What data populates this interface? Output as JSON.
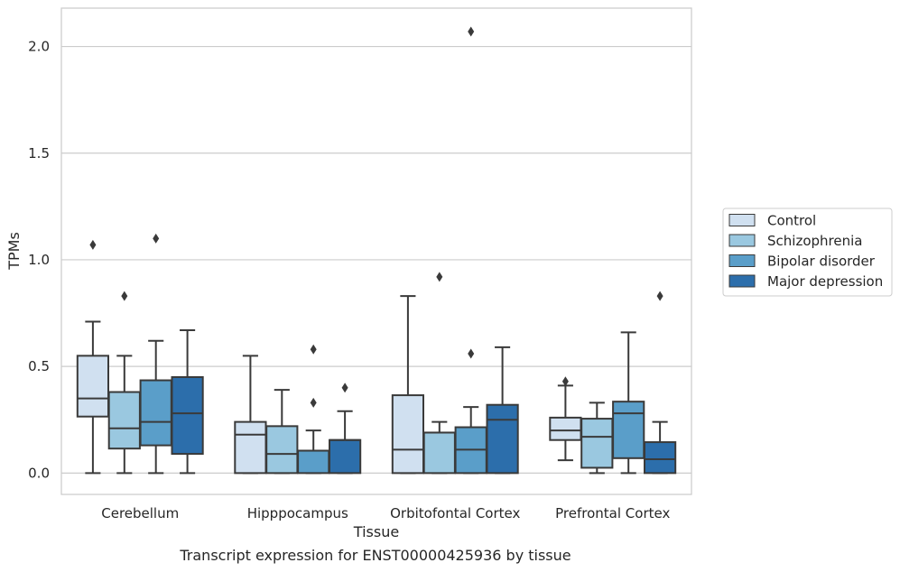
{
  "caption": "Transcript expression for ENST00000425936 by tissue",
  "chart_data": {
    "type": "box",
    "xlabel": "Tissue",
    "ylabel": "TPMs",
    "ylim": [
      -0.1,
      2.18
    ],
    "yticks": [
      0.0,
      0.5,
      1.0,
      1.5,
      2.0
    ],
    "ytick_labels": [
      "0.0",
      "0.5",
      "1.0",
      "1.5",
      "2.0"
    ],
    "grid": "horizontal",
    "legend_position": "right",
    "categories": [
      "Cerebellum",
      "Hipppocampus",
      "Orbitofontal Cortex",
      "Prefrontal Cortex"
    ],
    "series": [
      {
        "name": "Control",
        "color": "#d0e0f0",
        "boxes": [
          {
            "min": 0.0,
            "q1": 0.265,
            "median": 0.35,
            "q3": 0.55,
            "max": 0.71,
            "outliers": [
              1.07
            ]
          },
          {
            "min": 0.0,
            "q1": 0.0,
            "median": 0.18,
            "q3": 0.24,
            "max": 0.55,
            "outliers": []
          },
          {
            "min": 0.0,
            "q1": 0.0,
            "median": 0.11,
            "q3": 0.365,
            "max": 0.83,
            "outliers": []
          },
          {
            "min": 0.06,
            "q1": 0.155,
            "median": 0.2,
            "q3": 0.26,
            "max": 0.41,
            "outliers": [
              0.43
            ]
          }
        ]
      },
      {
        "name": "Schizophrenia",
        "color": "#9ac8e0",
        "boxes": [
          {
            "min": 0.0,
            "q1": 0.115,
            "median": 0.21,
            "q3": 0.38,
            "max": 0.55,
            "outliers": [
              0.83
            ]
          },
          {
            "min": 0.0,
            "q1": 0.0,
            "median": 0.09,
            "q3": 0.22,
            "max": 0.39,
            "outliers": []
          },
          {
            "min": 0.0,
            "q1": 0.0,
            "median": 0.19,
            "q3": 0.19,
            "max": 0.24,
            "outliers": [
              0.92
            ]
          },
          {
            "min": 0.0,
            "q1": 0.025,
            "median": 0.17,
            "q3": 0.255,
            "max": 0.33,
            "outliers": []
          }
        ]
      },
      {
        "name": "Bipolar disorder",
        "color": "#5a9ec9",
        "boxes": [
          {
            "min": 0.0,
            "q1": 0.13,
            "median": 0.24,
            "q3": 0.435,
            "max": 0.62,
            "outliers": [
              1.1
            ]
          },
          {
            "min": 0.0,
            "q1": 0.0,
            "median": 0.105,
            "q3": 0.105,
            "max": 0.2,
            "outliers": [
              0.33,
              0.58
            ]
          },
          {
            "min": 0.0,
            "q1": 0.0,
            "median": 0.11,
            "q3": 0.215,
            "max": 0.31,
            "outliers": [
              0.56,
              2.07
            ]
          },
          {
            "min": 0.0,
            "q1": 0.07,
            "median": 0.28,
            "q3": 0.335,
            "max": 0.66,
            "outliers": []
          }
        ]
      },
      {
        "name": "Major depression",
        "color": "#2c6eab",
        "boxes": [
          {
            "min": 0.0,
            "q1": 0.09,
            "median": 0.28,
            "q3": 0.45,
            "max": 0.67,
            "outliers": []
          },
          {
            "min": 0.0,
            "q1": 0.0,
            "median": 0.155,
            "q3": 0.155,
            "max": 0.29,
            "outliers": [
              0.4
            ]
          },
          {
            "min": 0.0,
            "q1": 0.0,
            "median": 0.25,
            "q3": 0.32,
            "max": 0.59,
            "outliers": []
          },
          {
            "min": 0.0,
            "q1": 0.0,
            "median": 0.065,
            "q3": 0.145,
            "max": 0.24,
            "outliers": [
              0.83
            ]
          }
        ]
      }
    ]
  }
}
